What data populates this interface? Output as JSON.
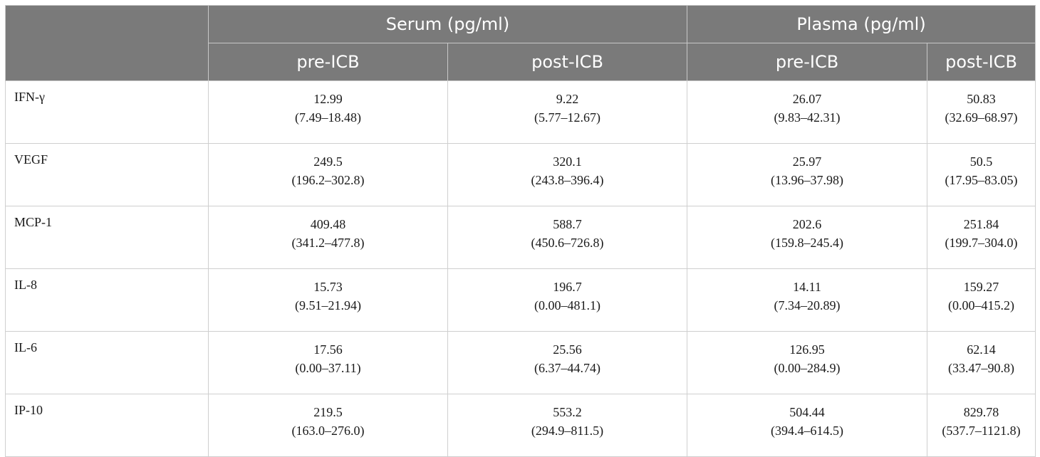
{
  "header": {
    "group1": "Serum (pg/ml)",
    "group2": "Plasma (pg/ml)",
    "subs": [
      "pre-ICB",
      "post-ICB",
      "pre-ICB",
      "post-ICB"
    ]
  },
  "rows": [
    {
      "label": "IFN-γ",
      "cells": [
        {
          "median": "12.99",
          "range": "(7.49–18.48)"
        },
        {
          "median": "9.22",
          "range": "(5.77–12.67)"
        },
        {
          "median": "26.07",
          "range": "(9.83–42.31)"
        },
        {
          "median": "50.83",
          "range": "(32.69–68.97)"
        }
      ]
    },
    {
      "label": "VEGF",
      "cells": [
        {
          "median": "249.5",
          "range": "(196.2–302.8)"
        },
        {
          "median": "320.1",
          "range": "(243.8–396.4)"
        },
        {
          "median": "25.97",
          "range": "(13.96–37.98)"
        },
        {
          "median": "50.5",
          "range": "(17.95–83.05)"
        }
      ]
    },
    {
      "label": "MCP-1",
      "cells": [
        {
          "median": "409.48",
          "range": "(341.2–477.8)"
        },
        {
          "median": "588.7",
          "range": "(450.6–726.8)"
        },
        {
          "median": "202.6",
          "range": "(159.8–245.4)"
        },
        {
          "median": "251.84",
          "range": "(199.7–304.0)"
        }
      ]
    },
    {
      "label": "IL-8",
      "cells": [
        {
          "median": "15.73",
          "range": "(9.51–21.94)"
        },
        {
          "median": "196.7",
          "range": "(0.00–481.1)"
        },
        {
          "median": "14.11",
          "range": "(7.34–20.89)"
        },
        {
          "median": "159.27",
          "range": "(0.00–415.2)"
        }
      ]
    },
    {
      "label": "IL-6",
      "cells": [
        {
          "median": "17.56",
          "range": "(0.00–37.11)"
        },
        {
          "median": "25.56",
          "range": "(6.37–44.74)"
        },
        {
          "median": "126.95",
          "range": "(0.00–284.9)"
        },
        {
          "median": "62.14",
          "range": "(33.47–90.8)"
        }
      ]
    },
    {
      "label": "IP-10",
      "cells": [
        {
          "median": "219.5",
          "range": "(163.0–276.0)"
        },
        {
          "median": "553.2",
          "range": "(294.9–811.5)"
        },
        {
          "median": "504.44",
          "range": "(394.4–614.5)"
        },
        {
          "median": "829.78",
          "range": "(537.7–1121.8)"
        }
      ]
    }
  ],
  "colors": {
    "header_bg": "#7a7a7a",
    "header_text": "#ffffff",
    "border": "#cfcfcf"
  }
}
